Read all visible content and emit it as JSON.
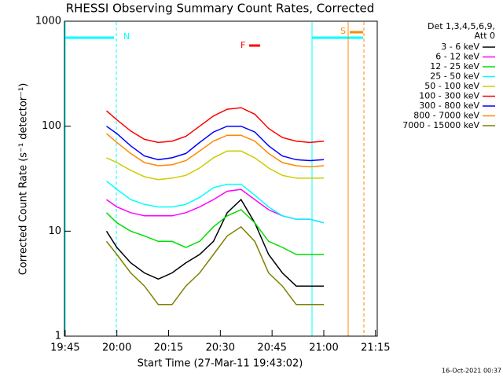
{
  "chart_data": {
    "type": "line",
    "title": "RHESSI Observing Summary Count Rates, Corrected",
    "x_label": "Start Time (27-Mar-11 19:43:02)",
    "y_label": "Corrected Count Rate (s⁻¹ detector⁻¹)",
    "legend_title": [
      "Det 1,3,4,5,6,9,",
      "Att 0"
    ],
    "annotations": [
      "N",
      "F",
      "S",
      "16-Oct-2021 00:37"
    ],
    "log_y": true,
    "legend": "right",
    "xlim": [
      1184.8,
      1275.5
    ],
    "xticks": [
      {
        "value": 1185,
        "label": "19:45"
      },
      {
        "value": 1200,
        "label": "20:00"
      },
      {
        "value": 1215,
        "label": "20:15"
      },
      {
        "value": 1230,
        "label": "20:30"
      },
      {
        "value": 1245,
        "label": "20:45"
      },
      {
        "value": 1260,
        "label": "21:00"
      },
      {
        "value": 1275,
        "label": "21:15"
      }
    ],
    "ylim": [
      1,
      1000
    ],
    "yticks": [
      1,
      10,
      100,
      1000
    ],
    "x": [
      1197,
      1200,
      1204,
      1208,
      1212,
      1216,
      1220,
      1224,
      1228,
      1232,
      1236,
      1240,
      1244,
      1248,
      1252,
      1256,
      1260
    ],
    "series": [
      {
        "name": "3 - 6 keV",
        "color": "#000000",
        "values": [
          10,
          7,
          5,
          4,
          3.5,
          4,
          5,
          6,
          8,
          15,
          20,
          12,
          6,
          4,
          3,
          3,
          3
        ]
      },
      {
        "name": "6 - 12 keV",
        "color": "#ff00ff",
        "values": [
          20,
          17,
          15,
          14,
          14,
          14,
          15,
          17,
          20,
          24,
          25,
          20,
          16,
          14,
          13,
          13,
          12
        ]
      },
      {
        "name": "12 - 25 keV",
        "color": "#00dd00",
        "values": [
          15,
          12,
          10,
          9,
          8,
          8,
          7,
          8,
          11,
          14,
          16,
          12,
          8,
          7,
          6,
          6,
          6
        ]
      },
      {
        "name": "25 - 50 keV",
        "color": "#00ffff",
        "values": [
          30,
          25,
          20,
          18,
          17,
          17,
          18,
          21,
          26,
          28,
          28,
          22,
          17,
          14,
          13,
          13,
          12
        ]
      },
      {
        "name": "50 - 100 keV",
        "color": "#cccc00",
        "values": [
          50,
          45,
          38,
          33,
          31,
          32,
          34,
          40,
          50,
          58,
          58,
          50,
          40,
          34,
          32,
          32,
          32
        ]
      },
      {
        "name": "100 - 300 keV",
        "color": "#ff0000",
        "values": [
          140,
          115,
          90,
          75,
          70,
          72,
          80,
          100,
          125,
          145,
          150,
          130,
          95,
          78,
          72,
          70,
          72
        ]
      },
      {
        "name": "300 - 800 keV",
        "color": "#0000ff",
        "values": [
          100,
          85,
          65,
          52,
          48,
          50,
          55,
          70,
          88,
          100,
          100,
          88,
          65,
          52,
          48,
          47,
          48
        ]
      },
      {
        "name": "800 - 7000 keV",
        "color": "#ff8800",
        "values": [
          85,
          70,
          55,
          45,
          42,
          43,
          47,
          58,
          72,
          82,
          82,
          72,
          55,
          45,
          42,
          41,
          42
        ]
      },
      {
        "name": "7000 - 15000 keV",
        "color": "#808000",
        "values": [
          8,
          6,
          4,
          3,
          2,
          2,
          3,
          4,
          6,
          9,
          11,
          8,
          4,
          3,
          2,
          2,
          2
        ]
      }
    ]
  }
}
